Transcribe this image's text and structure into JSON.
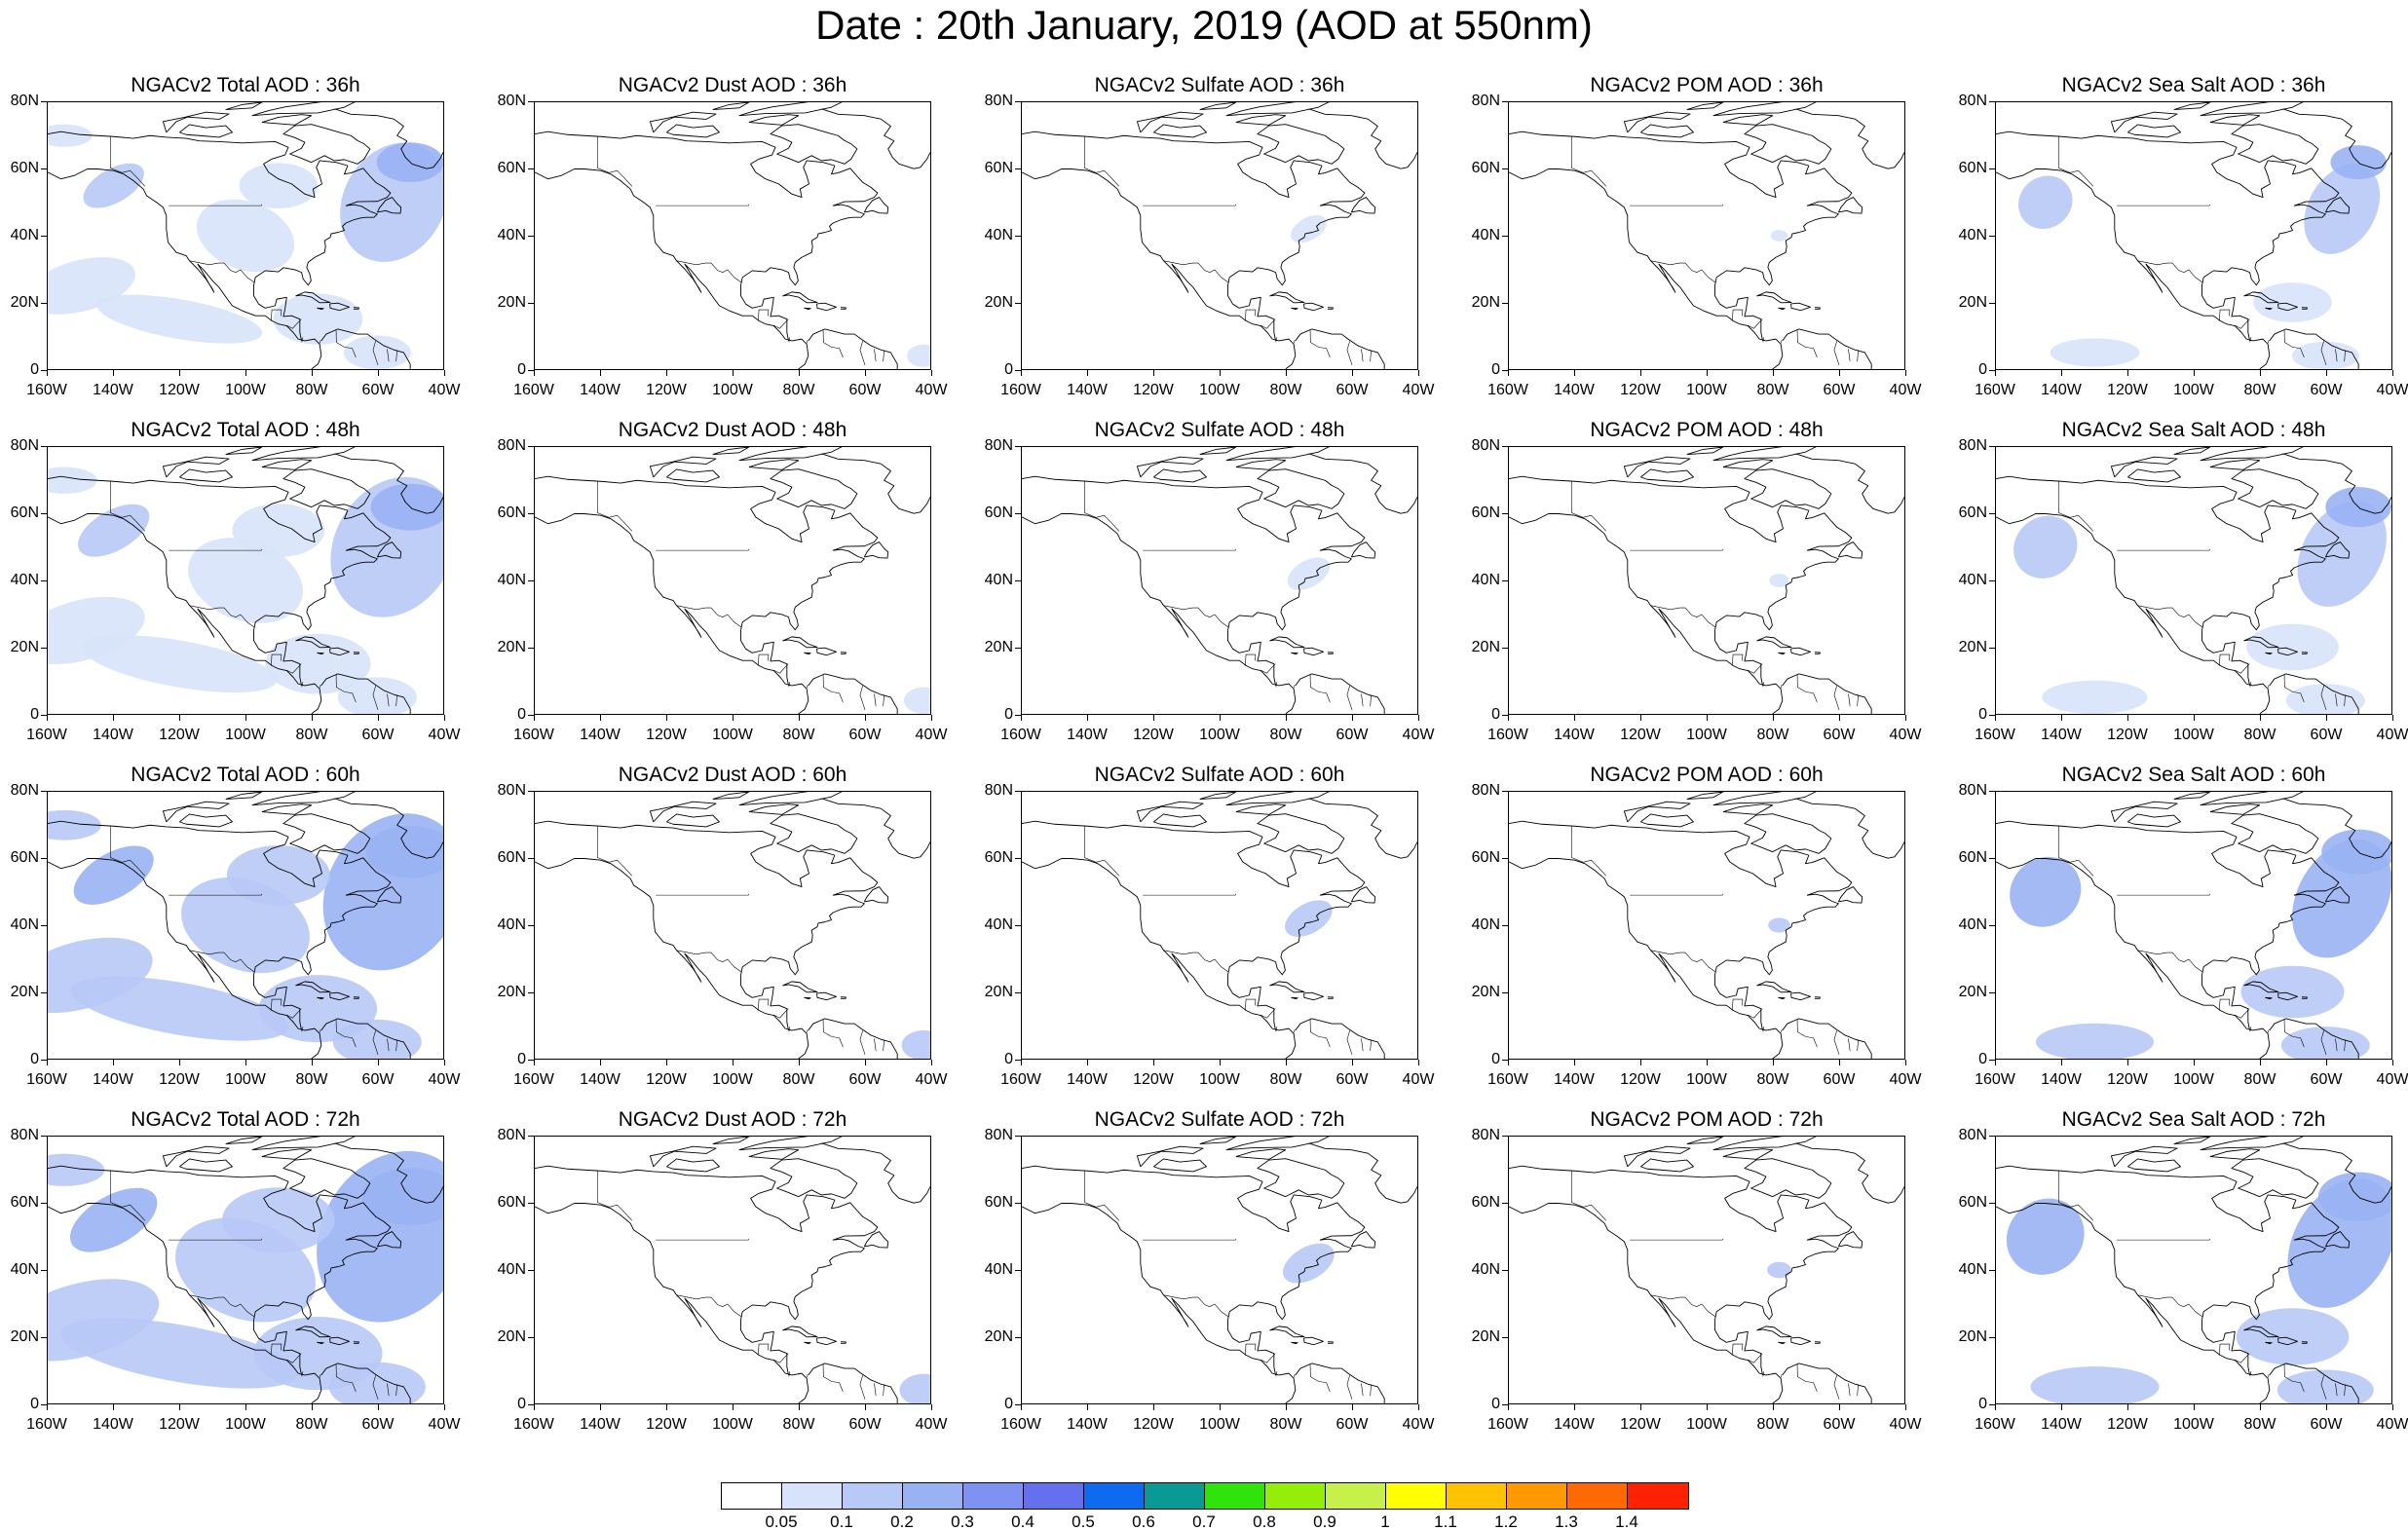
{
  "title": "Date : 20th January, 2019 (AOD at 550nm)",
  "axes": {
    "lat_ticks": [
      "80N",
      "60N",
      "40N",
      "20N",
      "0"
    ],
    "lon_ticks": [
      "160W",
      "140W",
      "120W",
      "100W",
      "80W",
      "60W",
      "40W"
    ],
    "lat_range": [
      0,
      80
    ],
    "lon_range": [
      -160,
      -40
    ]
  },
  "panels": [
    {
      "title": "NGACv2 Total AOD : 36h",
      "species": "total",
      "lead_hours": 36
    },
    {
      "title": "NGACv2 Dust AOD : 36h",
      "species": "dust",
      "lead_hours": 36
    },
    {
      "title": "NGACv2 Sulfate AOD : 36h",
      "species": "sulfate",
      "lead_hours": 36
    },
    {
      "title": "NGACv2 POM AOD : 36h",
      "species": "pom",
      "lead_hours": 36
    },
    {
      "title": "NGACv2 Sea Salt AOD : 36h",
      "species": "seasalt",
      "lead_hours": 36
    },
    {
      "title": "NGACv2 Total AOD : 48h",
      "species": "total",
      "lead_hours": 48
    },
    {
      "title": "NGACv2 Dust AOD : 48h",
      "species": "dust",
      "lead_hours": 48
    },
    {
      "title": "NGACv2 Sulfate AOD : 48h",
      "species": "sulfate",
      "lead_hours": 48
    },
    {
      "title": "NGACv2 POM AOD : 48h",
      "species": "pom",
      "lead_hours": 48
    },
    {
      "title": "NGACv2 Sea Salt AOD : 48h",
      "species": "seasalt",
      "lead_hours": 48
    },
    {
      "title": "NGACv2 Total AOD : 60h",
      "species": "total",
      "lead_hours": 60
    },
    {
      "title": "NGACv2 Dust AOD : 60h",
      "species": "dust",
      "lead_hours": 60
    },
    {
      "title": "NGACv2 Sulfate AOD : 60h",
      "species": "sulfate",
      "lead_hours": 60
    },
    {
      "title": "NGACv2 POM AOD : 60h",
      "species": "pom",
      "lead_hours": 60
    },
    {
      "title": "NGACv2 Sea Salt AOD : 60h",
      "species": "seasalt",
      "lead_hours": 60
    },
    {
      "title": "NGACv2 Total AOD : 72h",
      "species": "total",
      "lead_hours": 72
    },
    {
      "title": "NGACv2 Dust AOD : 72h",
      "species": "dust",
      "lead_hours": 72
    },
    {
      "title": "NGACv2 Sulfate AOD : 72h",
      "species": "sulfate",
      "lead_hours": 72
    },
    {
      "title": "NGACv2 POM AOD : 72h",
      "species": "pom",
      "lead_hours": 72
    },
    {
      "title": "NGACv2 Sea Salt  AOD : 72h",
      "species": "seasalt",
      "lead_hours": 72
    }
  ],
  "colorbar": {
    "colors": [
      "#ffffff",
      "#d7e3fa",
      "#b7c9f6",
      "#99b2f3",
      "#7d92f2",
      "#6470ee",
      "#0e6bef",
      "#0a9a96",
      "#2ee40c",
      "#94ee0a",
      "#c8f04a",
      "#ffff00",
      "#ffc200",
      "#ff9900",
      "#ff6a00",
      "#ff2200"
    ],
    "labels": [
      "0.05",
      "0.1",
      "0.2",
      "0.3",
      "0.4",
      "0.5",
      "0.6",
      "0.7",
      "0.8",
      "0.9",
      "1",
      "1.1",
      "1.2",
      "1.3",
      "1.4"
    ]
  }
}
